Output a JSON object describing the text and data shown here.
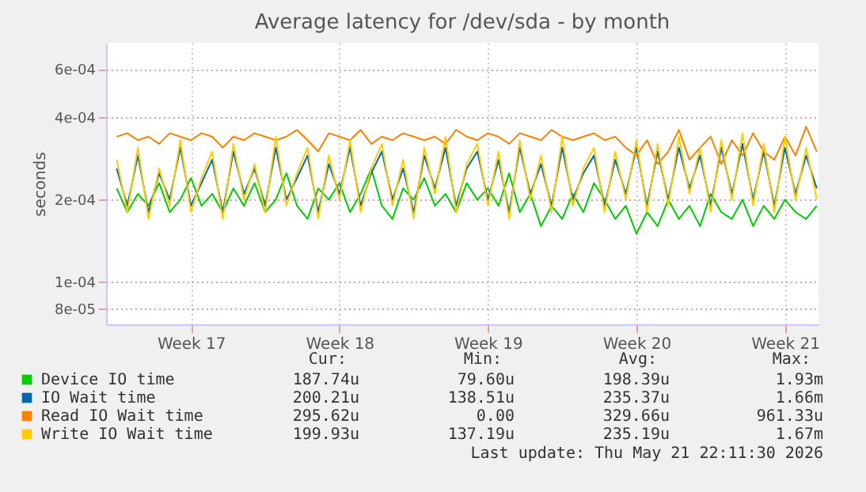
{
  "chart_data": {
    "type": "line",
    "title": "Average latency for /dev/sda - by month",
    "ylabel": "seconds",
    "x": [
      "2026-04-16T12:00",
      "2026-04-17T00:00",
      "2026-04-17T12:00",
      "2026-04-18T00:00",
      "2026-04-18T12:00",
      "2026-04-19T00:00",
      "2026-04-19T12:00",
      "2026-04-20T00:00",
      "2026-04-20T12:00",
      "2026-04-21T00:00",
      "2026-04-21T12:00",
      "2026-04-22T00:00",
      "2026-04-22T12:00",
      "2026-04-23T00:00",
      "2026-04-23T12:00",
      "2026-04-24T00:00",
      "2026-04-24T12:00",
      "2026-04-25T00:00",
      "2026-04-25T12:00",
      "2026-04-26T00:00",
      "2026-04-26T12:00",
      "2026-04-27T00:00",
      "2026-04-27T12:00",
      "2026-04-28T00:00",
      "2026-04-28T12:00",
      "2026-04-29T00:00",
      "2026-04-29T12:00",
      "2026-04-30T00:00",
      "2026-04-30T12:00",
      "2026-05-01T00:00",
      "2026-05-01T12:00",
      "2026-05-02T00:00",
      "2026-05-02T12:00",
      "2026-05-03T00:00",
      "2026-05-03T12:00",
      "2026-05-04T00:00",
      "2026-05-04T12:00",
      "2026-05-05T00:00",
      "2026-05-05T12:00",
      "2026-05-06T00:00",
      "2026-05-06T12:00",
      "2026-05-07T00:00",
      "2026-05-07T12:00",
      "2026-05-08T00:00",
      "2026-05-08T12:00",
      "2026-05-09T00:00",
      "2026-05-09T12:00",
      "2026-05-10T00:00",
      "2026-05-10T12:00",
      "2026-05-11T00:00",
      "2026-05-11T12:00",
      "2026-05-12T00:00",
      "2026-05-12T12:00",
      "2026-05-13T00:00",
      "2026-05-13T12:00",
      "2026-05-14T00:00",
      "2026-05-14T12:00",
      "2026-05-15T00:00",
      "2026-05-15T12:00",
      "2026-05-16T00:00",
      "2026-05-16T12:00",
      "2026-05-17T00:00",
      "2026-05-17T12:00",
      "2026-05-18T00:00",
      "2026-05-18T12:00",
      "2026-05-19T00:00",
      "2026-05-19T12:00"
    ],
    "series": [
      {
        "name": "Device IO time",
        "color": "#00cc00",
        "values": [
          0.00022,
          0.00018,
          0.00021,
          0.00019,
          0.00023,
          0.00018,
          0.0002,
          0.00024,
          0.00019,
          0.00021,
          0.00018,
          0.00022,
          0.00019,
          0.00023,
          0.00018,
          0.0002,
          0.00025,
          0.00019,
          0.00017,
          0.00022,
          0.0002,
          0.00023,
          0.00018,
          0.00021,
          0.00026,
          0.00019,
          0.00017,
          0.00022,
          0.0002,
          0.00024,
          0.00019,
          0.00021,
          0.00018,
          0.00023,
          0.0002,
          0.00022,
          0.00019,
          0.00025,
          0.00018,
          0.00021,
          0.00016,
          0.00019,
          0.00017,
          0.00021,
          0.00018,
          0.00023,
          0.0002,
          0.00017,
          0.00019,
          0.00015,
          0.00018,
          0.00016,
          0.0002,
          0.00017,
          0.00019,
          0.00016,
          0.00021,
          0.00018,
          0.00017,
          0.0002,
          0.00016,
          0.00019,
          0.00017,
          0.0002,
          0.00018,
          0.00017,
          0.00019
        ]
      },
      {
        "name": "IO Wait time",
        "color": "#0066b3",
        "values": [
          0.00026,
          0.00019,
          0.00029,
          0.00018,
          0.00025,
          0.0002,
          0.00031,
          0.00019,
          0.00023,
          0.00028,
          0.00018,
          0.0003,
          0.00021,
          0.00026,
          0.00019,
          0.00031,
          0.0002,
          0.00024,
          0.00029,
          0.00018,
          0.00027,
          0.00021,
          0.00031,
          0.00019,
          0.00025,
          0.0003,
          0.0002,
          0.00026,
          0.00018,
          0.00029,
          0.00022,
          0.00031,
          0.00019,
          0.00026,
          0.0003,
          0.0002,
          0.00028,
          0.00018,
          0.00031,
          0.00021,
          0.00027,
          0.00019,
          0.00031,
          0.0002,
          0.00025,
          0.00029,
          0.00019,
          0.00028,
          0.00021,
          0.00031,
          0.00019,
          0.0003,
          0.0002,
          0.00031,
          0.00022,
          0.00029,
          0.00019,
          0.00031,
          0.00021,
          0.00032,
          0.0002,
          0.0003,
          0.00019,
          0.00031,
          0.00021,
          0.00029,
          0.00022
        ]
      },
      {
        "name": "Read IO Wait time",
        "color": "#ff8000",
        "values": [
          0.00034,
          0.00035,
          0.00033,
          0.00034,
          0.00032,
          0.00035,
          0.00034,
          0.00033,
          0.00035,
          0.00034,
          0.00031,
          0.00034,
          0.00033,
          0.00035,
          0.00034,
          0.00033,
          0.00034,
          0.00036,
          0.00033,
          0.0003,
          0.00035,
          0.00034,
          0.00033,
          0.00036,
          0.00032,
          0.00034,
          0.00033,
          0.00035,
          0.00034,
          0.00033,
          0.00034,
          0.00032,
          0.00036,
          0.00034,
          0.00033,
          0.00035,
          0.00034,
          0.00032,
          0.00035,
          0.00034,
          0.00033,
          0.00036,
          0.00034,
          0.00033,
          0.00034,
          0.00035,
          0.00033,
          0.00034,
          0.00031,
          0.00029,
          0.00033,
          0.00027,
          0.0003,
          0.00036,
          0.00028,
          0.00031,
          0.00034,
          0.00027,
          0.00033,
          0.00029,
          0.00035,
          0.0003,
          0.00028,
          0.00034,
          0.00029,
          0.00037,
          0.0003
        ]
      },
      {
        "name": "Write IO Wait time",
        "color": "#ffcc00",
        "values": [
          0.00028,
          0.00018,
          0.00031,
          0.00017,
          0.00026,
          0.00019,
          0.00033,
          0.00018,
          0.00024,
          0.0003,
          0.00017,
          0.00032,
          0.0002,
          0.00027,
          0.00018,
          0.00034,
          0.00019,
          0.00025,
          0.00031,
          0.00017,
          0.00029,
          0.0002,
          0.00033,
          0.00018,
          0.00026,
          0.00032,
          0.00019,
          0.00028,
          0.00017,
          0.00031,
          0.00021,
          0.00034,
          0.00018,
          0.00027,
          0.00032,
          0.00019,
          0.0003,
          0.00017,
          0.00033,
          0.0002,
          0.00029,
          0.00018,
          0.00034,
          0.00019,
          0.00026,
          0.00031,
          0.00018,
          0.0003,
          0.0002,
          0.00033,
          0.00018,
          0.00032,
          0.00019,
          0.00034,
          0.00021,
          0.00031,
          0.00018,
          0.00033,
          0.0002,
          0.00035,
          0.00019,
          0.00032,
          0.00018,
          0.00034,
          0.0002,
          0.00031,
          0.0002
        ]
      }
    ],
    "xlim": [
      "2026-04-16T00:00",
      "2026-05-19T14:00"
    ],
    "xticks": [
      {
        "value": "2026-04-20",
        "label": "Week 17"
      },
      {
        "value": "2026-04-27",
        "label": "Week 18"
      },
      {
        "value": "2026-05-04",
        "label": "Week 19"
      },
      {
        "value": "2026-05-11",
        "label": "Week 20"
      },
      {
        "value": "2026-05-18",
        "label": "Week 21"
      }
    ],
    "ylim": [
      7e-05,
      0.00075
    ],
    "log": true,
    "yticks": [
      {
        "value": 8e-05,
        "label": "8e-05"
      },
      {
        "value": 0.0001,
        "label": "1e-04"
      },
      {
        "value": 0.0002,
        "label": "2e-04"
      },
      {
        "value": 0.0004,
        "label": "4e-04"
      },
      {
        "value": 0.0006,
        "label": "6e-04"
      }
    ],
    "grid": true,
    "legend": "bottom",
    "line_style": "solid",
    "marker": "none",
    "annotations": [
      "Cur:",
      "Min:",
      "Avg:",
      "Max:",
      "187.74u",
      "79.60u",
      "198.39u",
      "1.93m",
      "200.21u",
      "138.51u",
      "235.37u",
      "1.66m",
      "295.62u",
      "0.00",
      "329.66u",
      "961.33u",
      "199.93u",
      "137.19u",
      "235.19u",
      "1.67m",
      "Last update: Thu May 21 22:11:30 2026"
    ]
  }
}
